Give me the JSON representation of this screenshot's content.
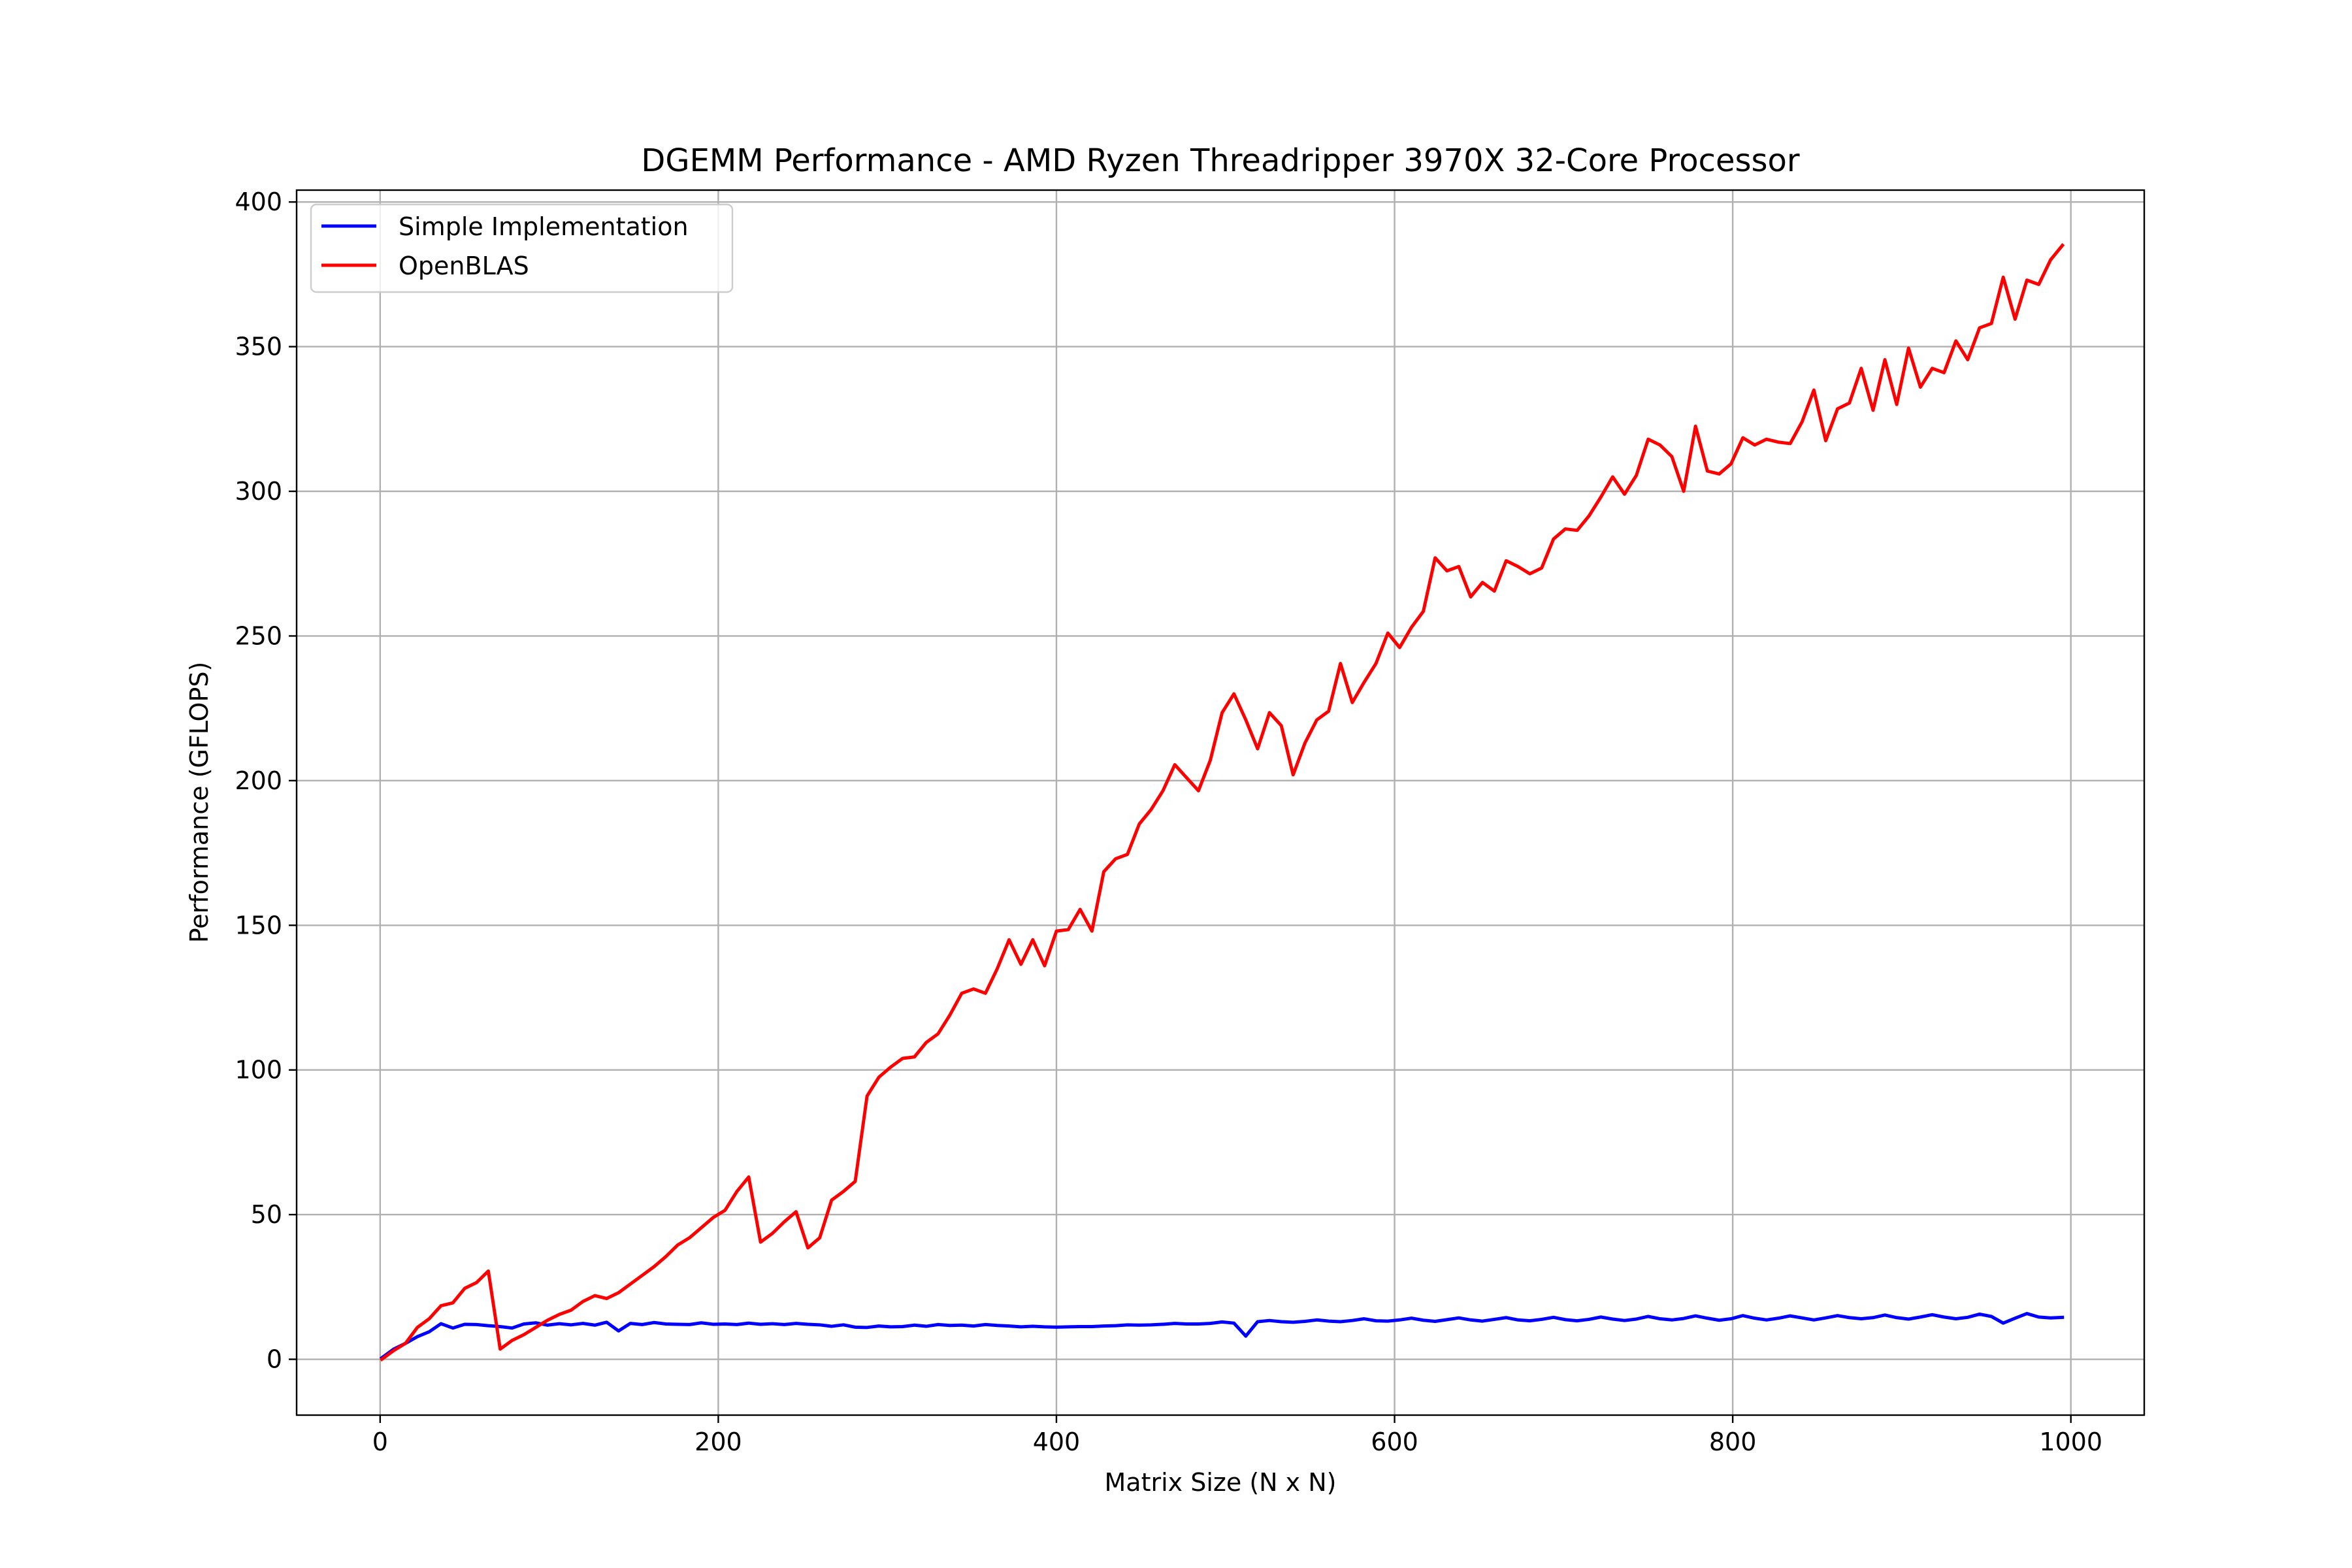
{
  "chart_data": {
    "type": "line",
    "title": "DGEMM Performance - AMD Ryzen Threadripper 3970X 32-Core Processor",
    "xlabel": "Matrix Size (N x N)",
    "ylabel": "Performance (GFLOPS)",
    "xlim": [
      -49.4,
      1043.4
    ],
    "ylim": [
      -19.3,
      404.1
    ],
    "xticks": [
      0,
      200,
      400,
      600,
      800,
      1000
    ],
    "yticks": [
      0,
      50,
      100,
      150,
      200,
      250,
      300,
      350,
      400
    ],
    "grid": true,
    "legend_position": "top-left",
    "x": [
      1,
      8,
      15,
      22,
      29,
      36,
      43,
      50,
      57,
      64,
      71,
      78,
      85,
      92,
      99,
      106,
      113,
      120,
      127,
      134,
      141,
      148,
      155,
      162,
      169,
      176,
      183,
      190,
      197,
      204,
      211,
      218,
      225,
      232,
      239,
      246,
      253,
      260,
      267,
      274,
      281,
      288,
      295,
      302,
      309,
      316,
      323,
      330,
      337,
      344,
      351,
      358,
      365,
      372,
      379,
      386,
      393,
      400,
      407,
      414,
      421,
      428,
      435,
      442,
      449,
      456,
      463,
      470,
      477,
      484,
      491,
      498,
      505,
      512,
      519,
      526,
      533,
      540,
      547,
      554,
      561,
      568,
      575,
      582,
      589,
      596,
      603,
      610,
      617,
      624,
      631,
      638,
      645,
      652,
      659,
      666,
      673,
      680,
      687,
      694,
      701,
      708,
      715,
      722,
      729,
      736,
      743,
      750,
      757,
      764,
      771,
      778,
      785,
      792,
      799,
      806,
      813,
      820,
      827,
      834,
      841,
      848,
      855,
      862,
      869,
      876,
      883,
      890,
      897,
      904,
      911,
      918,
      925,
      932,
      939,
      946,
      953,
      960,
      967,
      974,
      981,
      988,
      995
    ],
    "series": [
      {
        "name": "Simple Implementation",
        "color": "#0000ff",
        "values": [
          0.5,
          3.5,
          5.5,
          7.8,
          9.5,
          12.3,
          10.8,
          12.1,
          12.0,
          11.6,
          11.3,
          10.8,
          12.2,
          12.6,
          11.8,
          12.3,
          11.9,
          12.4,
          11.8,
          12.8,
          9.8,
          12.4,
          12.0,
          12.7,
          12.2,
          12.1,
          12.0,
          12.6,
          12.1,
          12.2,
          12.0,
          12.5,
          12.1,
          12.3,
          12.0,
          12.4,
          12.1,
          11.9,
          11.4,
          11.9,
          11.1,
          11.0,
          11.5,
          11.2,
          11.3,
          11.8,
          11.4,
          12.0,
          11.7,
          11.8,
          11.5,
          12.0,
          11.7,
          11.5,
          11.2,
          11.4,
          11.2,
          11.1,
          11.2,
          11.3,
          11.3,
          11.5,
          11.6,
          11.9,
          11.8,
          11.9,
          12.1,
          12.4,
          12.2,
          12.2,
          12.4,
          12.9,
          12.5,
          8.0,
          13.0,
          13.4,
          13.0,
          12.8,
          13.1,
          13.6,
          13.2,
          13.0,
          13.4,
          14.0,
          13.3,
          13.2,
          13.6,
          14.2,
          13.5,
          13.1,
          13.7,
          14.3,
          13.6,
          13.2,
          13.8,
          14.4,
          13.6,
          13.3,
          13.8,
          14.5,
          13.7,
          13.3,
          13.8,
          14.6,
          13.9,
          13.4,
          13.9,
          14.8,
          14.0,
          13.6,
          14.1,
          15.0,
          14.2,
          13.5,
          14.0,
          15.1,
          14.2,
          13.6,
          14.2,
          15.0,
          14.3,
          13.6,
          14.3,
          15.1,
          14.4,
          14.0,
          14.4,
          15.3,
          14.4,
          13.9,
          14.6,
          15.4,
          14.6,
          14.0,
          14.5,
          15.6,
          14.8,
          12.5,
          14.2,
          15.8,
          14.6,
          14.3,
          14.5
        ]
      },
      {
        "name": "OpenBLAS",
        "color": "#ff0000",
        "values": [
          0,
          3,
          5.5,
          11,
          14,
          18.5,
          19.5,
          24.5,
          26.5,
          30.5,
          3.5,
          6.5,
          8.5,
          11,
          13.5,
          15.5,
          17,
          20,
          22,
          21,
          23,
          26,
          29,
          32,
          35.5,
          39.5,
          42,
          45.5,
          49,
          51.5,
          58,
          63,
          40.5,
          43.5,
          47.5,
          51,
          38.5,
          42,
          55,
          58,
          61.5,
          91,
          97.5,
          101,
          104,
          104.5,
          109.5,
          112.5,
          119,
          126.5,
          128,
          126.5,
          135,
          145,
          136.5,
          145,
          136,
          148,
          148.5,
          155.5,
          148,
          168.5,
          173,
          174.5,
          185,
          190,
          196.5,
          205.5,
          201,
          196.5,
          207,
          223.5,
          230,
          221,
          211,
          223.5,
          219,
          202,
          213,
          221,
          224,
          240.5,
          227,
          234,
          240.5,
          251,
          246,
          253,
          258.5,
          277,
          272.5,
          274,
          263.5,
          268.5,
          265.5,
          276,
          274,
          271.5,
          273.5,
          283.5,
          287,
          286.5,
          291.5,
          298,
          305,
          299,
          305.5,
          318,
          316,
          312,
          300,
          322.5,
          307,
          306,
          309.5,
          318.5,
          316,
          318,
          317,
          316.5,
          324,
          335,
          317.5,
          328.5,
          330.5,
          342.5,
          328,
          345.5,
          330,
          349.5,
          336,
          342.5,
          341,
          352,
          345.5,
          356.5,
          358,
          374,
          359.5,
          373,
          371.5,
          380,
          385
        ]
      }
    ]
  }
}
